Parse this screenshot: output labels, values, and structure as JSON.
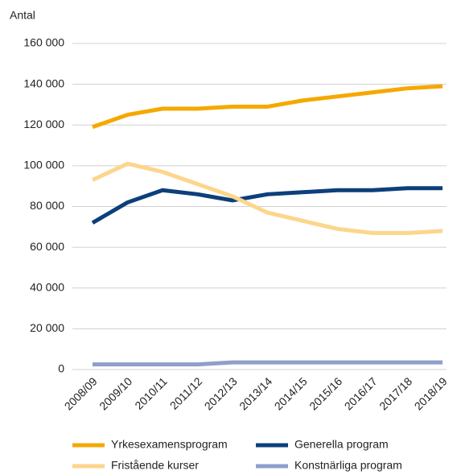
{
  "chart_data": {
    "type": "line",
    "y_label": "Antal",
    "categories": [
      "2008/09",
      "2009/10",
      "2010/11",
      "2011/12",
      "2012/13",
      "2013/14",
      "2014/15",
      "2015/16",
      "2016/17",
      "2017/18",
      "2018/19"
    ],
    "series": [
      {
        "name": "Yrkesexamensprogram",
        "color": "#f5a800",
        "values": [
          119000,
          125000,
          128000,
          128000,
          129000,
          129000,
          132000,
          134000,
          136000,
          138000,
          139000
        ]
      },
      {
        "name": "Generella program",
        "color": "#0d3f7a",
        "values": [
          72000,
          82000,
          88000,
          86000,
          83000,
          86000,
          87000,
          88000,
          88000,
          89000,
          89000
        ]
      },
      {
        "name": "Fristående kurser",
        "color": "#fcd68c",
        "values": [
          93000,
          101000,
          97000,
          91000,
          85000,
          77000,
          73000,
          69000,
          67000,
          67000,
          68000
        ]
      },
      {
        "name": "Konstnärliga program",
        "color": "#8f9fcb",
        "values": [
          2500,
          2500,
          2500,
          2500,
          3500,
          3500,
          3500,
          3500,
          3500,
          3500,
          3500
        ]
      }
    ],
    "ylim": [
      0,
      160000
    ],
    "yticks": [
      0,
      {
        "value": 20000,
        "label": "20 000"
      },
      {
        "value": 40000,
        "label": "40 000"
      },
      {
        "value": 60000,
        "label": "60 000"
      },
      {
        "value": 80000,
        "label": "80 000"
      },
      {
        "value": 100000,
        "label": "100 000"
      },
      {
        "value": 120000,
        "label": "120 000"
      },
      {
        "value": 140000,
        "label": "140 000"
      },
      {
        "value": 160000,
        "label": "160 000"
      }
    ],
    "grid": true
  }
}
